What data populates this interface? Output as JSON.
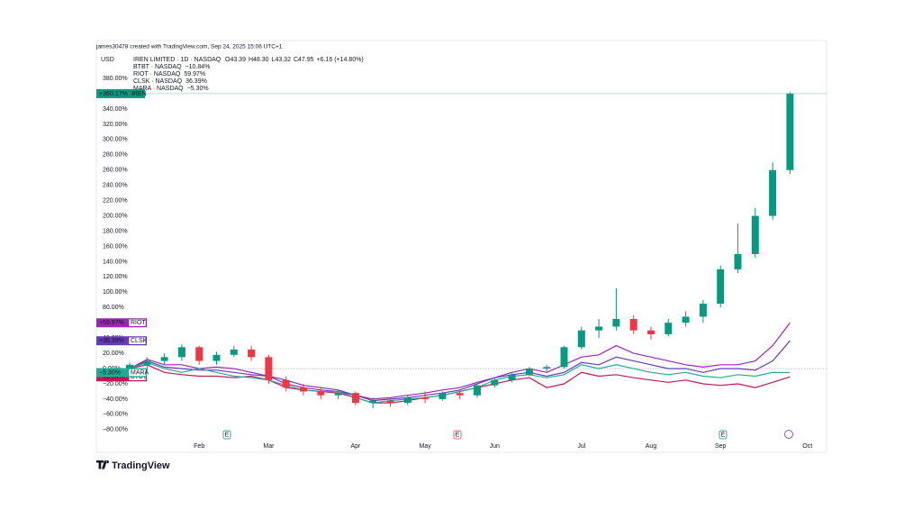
{
  "chart_data": {
    "type": "candlestick",
    "credit": "james30478 created with TradingView.com, Sep 24, 2025 15:06 UTC+1",
    "currency": "USD",
    "symbol": "IREN LIMITED · 1D · NASDAQ",
    "ohlc_labels": [
      "O43.39",
      "H48.30",
      "L43.32",
      "C47.95",
      "+6.16 (+14.80%)"
    ],
    "brand": "TradingView",
    "events": [
      "E",
      "E",
      "E"
    ],
    "categories": [
      null,
      null,
      null,
      null,
      "Feb",
      null,
      null,
      null,
      "Mar",
      null,
      null,
      null,
      null,
      "Apr",
      null,
      null,
      null,
      "May",
      null,
      null,
      null,
      "Jun",
      null,
      null,
      null,
      null,
      "Jul",
      null,
      null,
      null,
      "Aug",
      null,
      null,
      null,
      "Sep",
      null,
      null,
      null,
      null,
      "Oct"
    ],
    "ylim": [
      -92,
      412
    ],
    "yticks": [
      {
        "value": 380,
        "label": "380.00%"
      },
      {
        "value": 360,
        "label": "360.00%"
      },
      {
        "value": 340,
        "label": "340.00%"
      },
      {
        "value": 320,
        "label": "320.00%"
      },
      {
        "value": 300,
        "label": "300.00%"
      },
      {
        "value": 280,
        "label": "280.00%"
      },
      {
        "value": 260,
        "label": "260.00%"
      },
      {
        "value": 240,
        "label": "240.00%"
      },
      {
        "value": 220,
        "label": "220.00%"
      },
      {
        "value": 200,
        "label": "200.00%"
      },
      {
        "value": 180,
        "label": "180.00%"
      },
      {
        "value": 160,
        "label": "160.00%"
      },
      {
        "value": 140,
        "label": "140.00%"
      },
      {
        "value": 120,
        "label": "120.00%"
      },
      {
        "value": 100,
        "label": "100.00%"
      },
      {
        "value": 80,
        "label": "80.00%"
      },
      {
        "value": 60,
        "label": "60.00%"
      },
      {
        "value": 40,
        "label": "40.00%"
      },
      {
        "value": 20,
        "label": "20.00%"
      },
      {
        "value": 0,
        "label": "0.00%"
      },
      {
        "value": -20,
        "label": "−20.00%"
      },
      {
        "value": -40,
        "label": "−40.00%"
      },
      {
        "value": -60,
        "label": "−60.00%"
      },
      {
        "value": -80,
        "label": "−80.00%"
      }
    ],
    "candles": {
      "name": "IREN",
      "up_color": "#089981",
      "down_color": "#f23645",
      "last_label": "+360.17%",
      "open": [
        0,
        5,
        10,
        15,
        28,
        10,
        18,
        25,
        15,
        -15,
        -25,
        -30,
        -35,
        -32,
        -45,
        -42,
        -45,
        -38,
        -40,
        -32,
        -35,
        -22,
        -15,
        -8,
        0,
        2,
        28,
        50,
        55,
        65,
        50,
        45,
        60,
        68,
        85,
        130,
        150,
        200,
        260,
        null
      ],
      "high": [
        8,
        15,
        20,
        32,
        30,
        22,
        30,
        30,
        18,
        -10,
        -20,
        -25,
        -28,
        -30,
        -38,
        -38,
        -35,
        -30,
        -30,
        -28,
        -20,
        -12,
        -5,
        2,
        5,
        30,
        55,
        65,
        105,
        70,
        55,
        65,
        75,
        90,
        135,
        190,
        210,
        270,
        362,
        null
      ],
      "low": [
        -3,
        -2,
        5,
        10,
        5,
        5,
        15,
        10,
        -20,
        -30,
        -35,
        -40,
        -40,
        -48,
        -52,
        -50,
        -48,
        -45,
        -42,
        -40,
        -38,
        -25,
        -18,
        -10,
        -5,
        0,
        25,
        40,
        50,
        45,
        38,
        42,
        55,
        60,
        80,
        125,
        145,
        195,
        255,
        null
      ],
      "close": [
        5,
        10,
        15,
        28,
        10,
        18,
        25,
        15,
        -15,
        -25,
        -30,
        -35,
        -32,
        -45,
        -42,
        -45,
        -38,
        -40,
        -32,
        -35,
        -22,
        -15,
        -8,
        0,
        2,
        28,
        50,
        55,
        65,
        50,
        45,
        60,
        68,
        85,
        130,
        150,
        200,
        260,
        360.17,
        null
      ]
    },
    "series": [
      {
        "name": "BTBT · NASDAQ",
        "short": "BTBT",
        "color": "#c2185b",
        "legend_value": "−10.84%",
        "values": [
          0,
          5,
          -5,
          -8,
          -10,
          -10,
          -12,
          -10,
          -15,
          -25,
          -28,
          -30,
          -32,
          -38,
          -45,
          -45,
          -42,
          -38,
          -35,
          -30,
          -25,
          -20,
          -15,
          -12,
          -25,
          -20,
          -5,
          -10,
          -8,
          -12,
          -15,
          -18,
          -15,
          -20,
          -22,
          -20,
          -25,
          -18,
          -10.84,
          null
        ],
        "value_labels": [
          null,
          null,
          null,
          null,
          null,
          null,
          null,
          null,
          null,
          null,
          null,
          null,
          null,
          null,
          null,
          null,
          null,
          null,
          null,
          null,
          null,
          null,
          null,
          null,
          null,
          null,
          null,
          null,
          null,
          null,
          null,
          null,
          null,
          null,
          null,
          null,
          null,
          null,
          "−10.84%",
          null
        ]
      },
      {
        "name": "RIOT · NASDAQ",
        "short": "RIOT",
        "color": "#9c27b0",
        "legend_value": "59.97%",
        "values": [
          0,
          12,
          5,
          5,
          0,
          2,
          0,
          -5,
          -10,
          -20,
          -25,
          -28,
          -30,
          -35,
          -40,
          -38,
          -35,
          -32,
          -28,
          -25,
          -18,
          -12,
          -5,
          0,
          -5,
          5,
          15,
          18,
          30,
          20,
          15,
          10,
          5,
          2,
          5,
          5,
          10,
          30,
          59.97,
          null
        ],
        "value_labels": [
          null,
          null,
          null,
          null,
          null,
          null,
          null,
          null,
          null,
          null,
          null,
          null,
          null,
          null,
          null,
          null,
          null,
          null,
          null,
          null,
          null,
          null,
          null,
          null,
          null,
          null,
          null,
          null,
          null,
          null,
          null,
          null,
          null,
          null,
          null,
          null,
          null,
          null,
          "+59.97%",
          null
        ]
      },
      {
        "name": "CLSK · NASDAQ",
        "short": "CLSK",
        "color": "#673ab7",
        "legend_value": "36.39%",
        "values": [
          0,
          10,
          2,
          0,
          -2,
          -2,
          -5,
          -8,
          -10,
          -15,
          -22,
          -25,
          -28,
          -35,
          -42,
          -40,
          -38,
          -35,
          -32,
          -28,
          -20,
          -12,
          -8,
          -5,
          -10,
          -5,
          8,
          5,
          15,
          10,
          5,
          0,
          0,
          -5,
          0,
          0,
          -2,
          10,
          36.39,
          null
        ],
        "value_labels": [
          null,
          null,
          null,
          null,
          null,
          null,
          null,
          null,
          null,
          null,
          null,
          null,
          null,
          null,
          null,
          null,
          null,
          null,
          null,
          null,
          null,
          null,
          null,
          null,
          null,
          null,
          null,
          null,
          null,
          null,
          null,
          null,
          null,
          null,
          null,
          null,
          null,
          null,
          "+36.39%",
          null
        ]
      },
      {
        "name": "MARA · NASDAQ",
        "short": "MARA",
        "color": "#22ab94",
        "legend_value": "−5.30%",
        "values": [
          0,
          8,
          0,
          -5,
          0,
          -5,
          -10,
          -12,
          -15,
          -22,
          -28,
          -30,
          -30,
          -38,
          -45,
          -42,
          -40,
          -38,
          -35,
          -30,
          -25,
          -15,
          -10,
          -8,
          -12,
          -8,
          5,
          0,
          5,
          0,
          -5,
          -8,
          -5,
          -10,
          -12,
          -8,
          -10,
          -5,
          -5.3,
          null
        ],
        "value_labels": [
          null,
          null,
          null,
          null,
          null,
          null,
          null,
          null,
          null,
          null,
          null,
          null,
          null,
          null,
          null,
          null,
          null,
          null,
          null,
          null,
          null,
          null,
          null,
          null,
          null,
          null,
          null,
          null,
          null,
          null,
          null,
          null,
          null,
          null,
          null,
          null,
          null,
          null,
          "−5.30%",
          null
        ]
      }
    ]
  }
}
